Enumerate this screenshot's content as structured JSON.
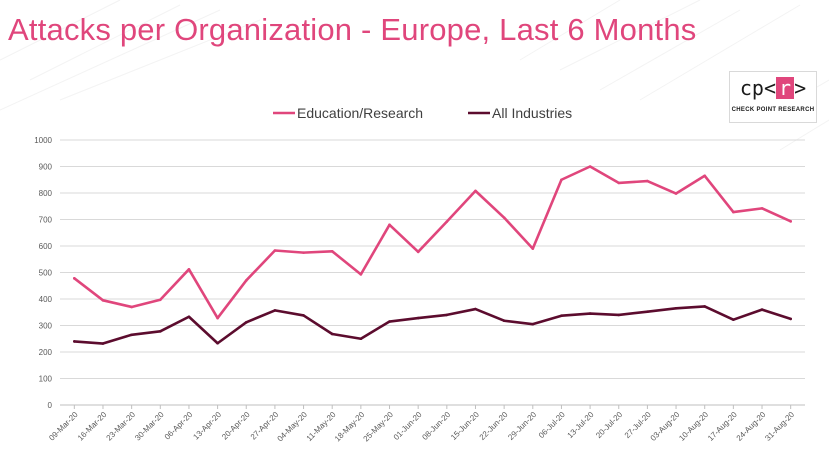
{
  "title": "Attacks per Organization - Europe, Last 6 Months",
  "logo": {
    "mark_left": "cp<",
    "mark_mid": "r",
    "mark_right": ">",
    "text": "CHECK POINT RESEARCH"
  },
  "colors": {
    "education": "#e0467c",
    "all_industries": "#5c0c2e",
    "grid": "#d9d9d9",
    "title": "#e0467c"
  },
  "chart_data": {
    "type": "line",
    "title": "Attacks per Organization - Europe, Last 6 Months",
    "xlabel": "",
    "ylabel": "",
    "ylim": [
      0,
      1000
    ],
    "yticks": [
      0,
      100,
      200,
      300,
      400,
      500,
      600,
      700,
      800,
      900,
      1000
    ],
    "legend_position": "top-center",
    "grid": true,
    "categories": [
      "09-Mar-20",
      "16-Mar-20",
      "23-Mar-20",
      "30-Mar-20",
      "06-Apr-20",
      "13-Apr-20",
      "20-Apr-20",
      "27-Apr-20",
      "04-May-20",
      "11-May-20",
      "18-May-20",
      "25-May-20",
      "01-Jun-20",
      "08-Jun-20",
      "15-Jun-20",
      "22-Jun-20",
      "29-Jun-20",
      "06-Jul-20",
      "13-Jul-20",
      "20-Jul-20",
      "27-Jul-20",
      "03-Aug-20",
      "10-Aug-20",
      "17-Aug-20",
      "24-Aug-20",
      "31-Aug-20"
    ],
    "series": [
      {
        "name": "Education/Research",
        "color": "#e0467c",
        "values": [
          478,
          395,
          370,
          397,
          512,
          328,
          470,
          583,
          575,
          580,
          493,
          680,
          578,
          692,
          808,
          707,
          590,
          850,
          900,
          838,
          845,
          798,
          865,
          728,
          742,
          693
        ]
      },
      {
        "name": "All Industries",
        "color": "#5c0c2e",
        "values": [
          240,
          232,
          265,
          278,
          333,
          233,
          312,
          357,
          338,
          268,
          250,
          315,
          328,
          340,
          362,
          318,
          305,
          337,
          345,
          340,
          352,
          365,
          372,
          322,
          360,
          325
        ]
      }
    ]
  }
}
